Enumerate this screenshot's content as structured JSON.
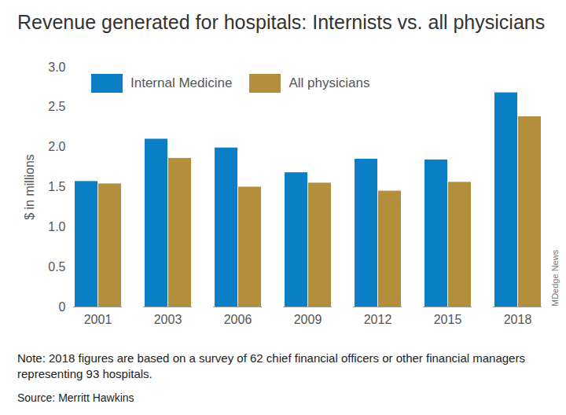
{
  "chart_data": {
    "type": "bar",
    "title": "Revenue generated for hospitals: Internists vs. all physicians",
    "y_label": "$ in millions",
    "categories": [
      "2001",
      "2003",
      "2006",
      "2009",
      "2012",
      "2015",
      "2018"
    ],
    "series": [
      {
        "name": "Internal Medicine",
        "color": "#0a7fc6",
        "values": [
          1.57,
          2.1,
          1.99,
          1.68,
          1.85,
          1.84,
          2.68
        ]
      },
      {
        "name": "All physicians",
        "color": "#b38f3b",
        "values": [
          1.54,
          1.86,
          1.5,
          1.55,
          1.45,
          1.56,
          2.38
        ]
      }
    ],
    "ylim": [
      0,
      3.0
    ],
    "yticks": [
      0,
      0.5,
      {
        "value": 1,
        "label": "1.0"
      },
      1.5,
      {
        "value": 2,
        "label": "2.0"
      },
      2.5,
      {
        "value": 3,
        "label": "3.0"
      }
    ],
    "grid": false,
    "legend": "upper left",
    "note": "Note: 2018 figures are based on a survey of 62 chief financial officers or other financial managers representing 93 hospitals.",
    "source": "Source: Merritt Hawkins",
    "credit": "MDedge News"
  }
}
